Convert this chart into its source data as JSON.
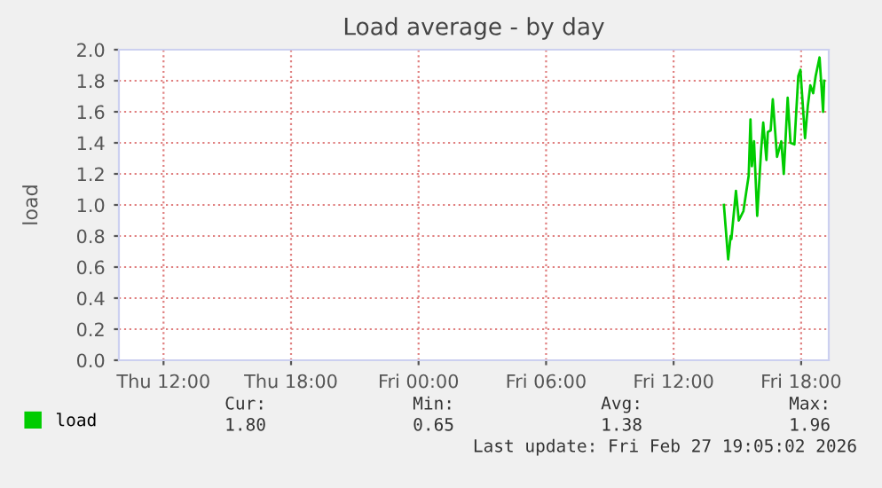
{
  "chart_data": {
    "type": "line",
    "title": "Load average - by day",
    "ylabel": "load",
    "x": [
      "2026-02-27T14:22",
      "2026-02-27T14:34",
      "2026-02-27T14:41",
      "2026-02-27T14:43",
      "2026-02-27T14:56",
      "2026-02-27T15:04",
      "2026-02-27T15:17",
      "2026-02-27T15:32",
      "2026-02-27T15:37",
      "2026-02-27T15:41",
      "2026-02-27T15:47",
      "2026-02-27T15:56",
      "2026-02-27T16:07",
      "2026-02-27T16:13",
      "2026-02-27T16:22",
      "2026-02-27T16:26",
      "2026-02-27T16:34",
      "2026-02-27T16:40",
      "2026-02-27T16:52",
      "2026-02-27T17:04",
      "2026-02-27T17:11",
      "2026-02-27T17:22",
      "2026-02-27T17:30",
      "2026-02-27T17:41",
      "2026-02-27T17:52",
      "2026-02-27T17:58",
      "2026-02-27T18:11",
      "2026-02-27T18:19",
      "2026-02-27T18:26",
      "2026-02-27T18:34",
      "2026-02-27T18:41",
      "2026-02-27T18:52",
      "2026-02-27T19:02",
      "2026-02-27T19:05"
    ],
    "series": [
      {
        "name": "load",
        "color": "#00cc00",
        "values": [
          1.0,
          0.65,
          0.8,
          0.78,
          1.09,
          0.9,
          0.96,
          1.19,
          1.55,
          1.25,
          1.41,
          0.93,
          1.35,
          1.53,
          1.29,
          1.47,
          1.48,
          1.68,
          1.31,
          1.41,
          1.2,
          1.69,
          1.4,
          1.39,
          1.83,
          1.87,
          1.43,
          1.64,
          1.77,
          1.72,
          1.83,
          1.95,
          1.6,
          1.8
        ]
      }
    ],
    "xlim": [
      "2026-02-26T09:54",
      "2026-02-27T19:18"
    ],
    "xticks": [
      {
        "value": "2026-02-26T12:00",
        "label": "Thu 12:00"
      },
      {
        "value": "2026-02-26T18:00",
        "label": "Thu 18:00"
      },
      {
        "value": "2026-02-27T00:00",
        "label": "Fri 00:00"
      },
      {
        "value": "2026-02-27T06:00",
        "label": "Fri 06:00"
      },
      {
        "value": "2026-02-27T12:00",
        "label": "Fri 12:00"
      },
      {
        "value": "2026-02-27T18:00",
        "label": "Fri 18:00"
      }
    ],
    "ylim": [
      0,
      2.0
    ],
    "yticks": [
      {
        "value": 0,
        "label": "0.0"
      },
      {
        "value": 0.2,
        "label": "0.2"
      },
      {
        "value": 0.4,
        "label": "0.4"
      },
      {
        "value": 0.6,
        "label": "0.6"
      },
      {
        "value": 0.8,
        "label": "0.8"
      },
      {
        "value": 1.0,
        "label": "1.0"
      },
      {
        "value": 1.2,
        "label": "1.2"
      },
      {
        "value": 1.4,
        "label": "1.4"
      },
      {
        "value": 1.6,
        "label": "1.6"
      },
      {
        "value": 1.8,
        "label": "1.8"
      },
      {
        "value": 2.0,
        "label": "2.0"
      }
    ],
    "grid": true,
    "legend": "bottom left",
    "marker": "none",
    "line_style": "solid",
    "annotations": [
      "Cur:",
      "1.80",
      "Min:",
      "0.65",
      "Avg:",
      "1.38",
      "Max:",
      "1.96",
      "Last update: Fri Feb 27 19:05:02 2026"
    ]
  }
}
